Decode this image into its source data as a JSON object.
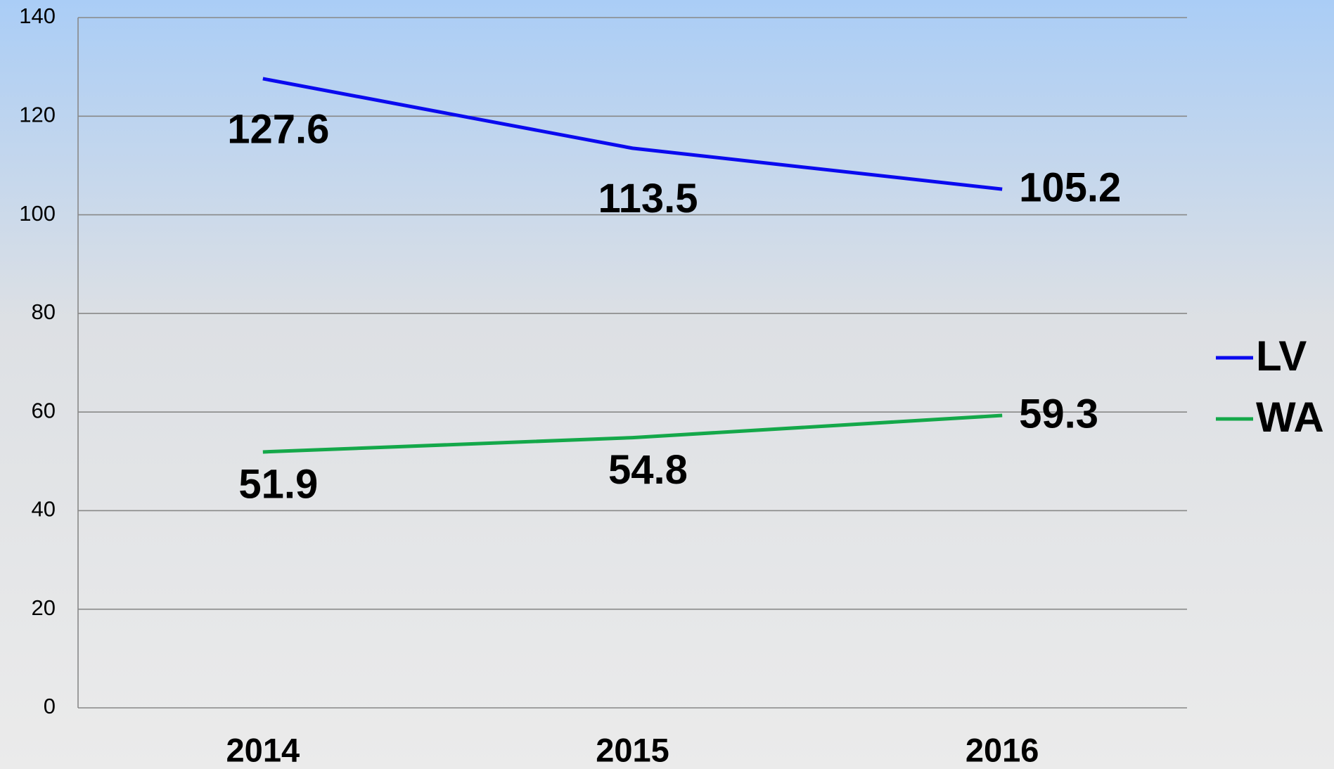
{
  "chart_data": {
    "type": "line",
    "categories": [
      "2014",
      "2015",
      "2016"
    ],
    "series": [
      {
        "name": "LV",
        "color": "#0a0aef",
        "values": [
          127.6,
          113.5,
          105.2
        ]
      },
      {
        "name": "WA",
        "color": "#14a84a",
        "values": [
          51.9,
          54.8,
          59.3
        ]
      }
    ],
    "ylim": [
      0,
      140
    ],
    "yticks": [
      0,
      20,
      40,
      60,
      80,
      100,
      120,
      140
    ],
    "grid": true,
    "legend": "right"
  }
}
